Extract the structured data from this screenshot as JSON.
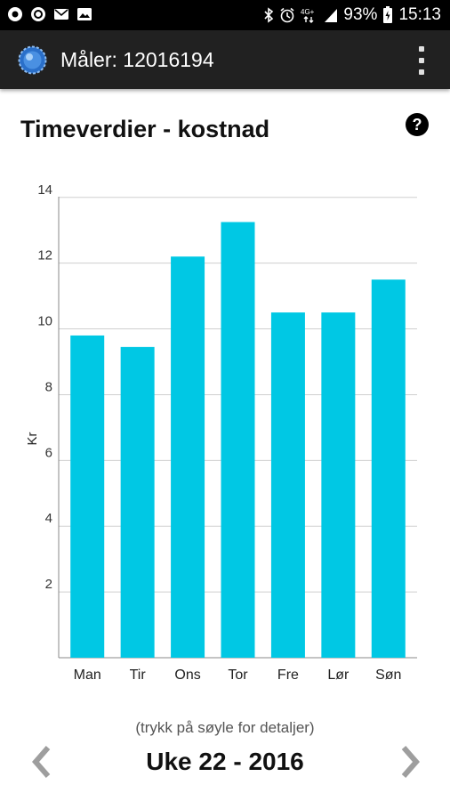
{
  "status_bar": {
    "battery": "93%",
    "time": "15:13",
    "left_icons": [
      "sync-icon",
      "alert-icon",
      "mail-icon",
      "image-icon"
    ],
    "right_icons": [
      "bluetooth-icon",
      "alarm-icon",
      "network-icon",
      "signal-icon",
      "battery-icon"
    ]
  },
  "app_bar": {
    "title": "Måler: 12016194",
    "logo_icon": "meter-logo-icon",
    "menu_icon": "overflow-menu-icon"
  },
  "page": {
    "title": "Timeverdier - kostnad",
    "help_icon": "help-icon",
    "hint": "(trykk på søyle for detaljer)",
    "week_label": "Uke 22 - 2016"
  },
  "colors": {
    "bar": "#00c8e4",
    "appbar": "#212121",
    "grid": "#cfcfcf"
  },
  "chart_data": {
    "type": "bar",
    "categories": [
      "Man",
      "Tir",
      "Ons",
      "Tor",
      "Fre",
      "Lør",
      "Søn"
    ],
    "values": [
      9.8,
      9.45,
      12.2,
      13.25,
      10.5,
      10.5,
      11.5
    ],
    "ylabel": "Kr",
    "yticks": [
      2,
      4,
      6,
      8,
      10,
      12,
      14
    ],
    "ylim": [
      0,
      14.4
    ],
    "grid": true
  }
}
